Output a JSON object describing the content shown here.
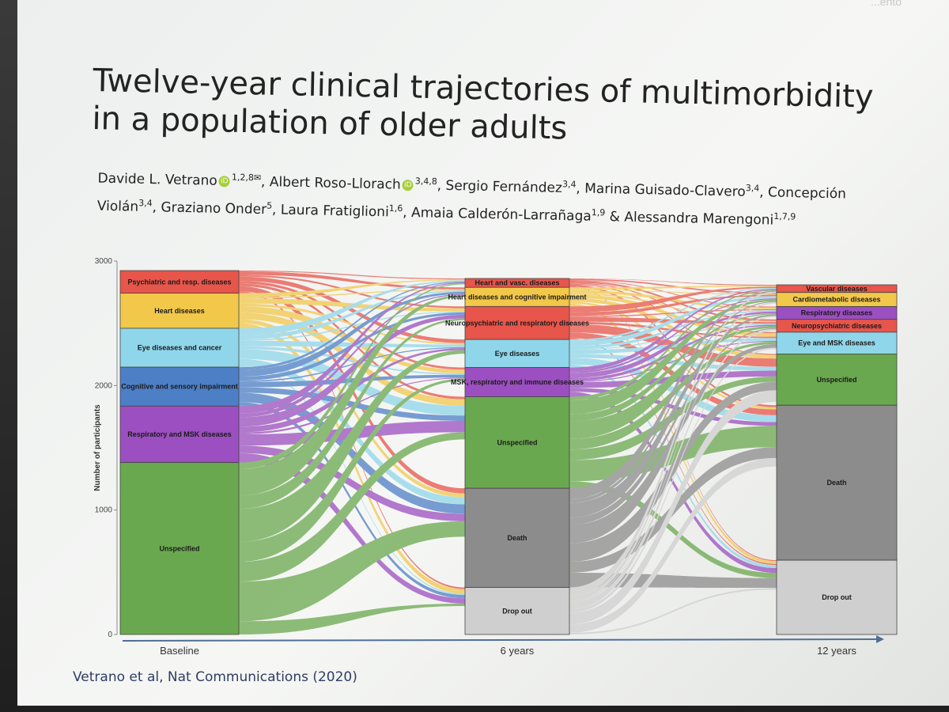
{
  "topbar": {
    "text": "...ento"
  },
  "title": "Twelve-year clinical trajectories of multimorbidity in a population of older adults",
  "authors": [
    {
      "name": "Davide L. Vetrano",
      "orcid": true,
      "sup": "1,2,8✉",
      "sep": ", "
    },
    {
      "name": "Albert Roso-Llorach",
      "orcid": true,
      "sup": "3,4,8",
      "sep": ", "
    },
    {
      "name": "Sergio Fernández",
      "orcid": false,
      "sup": "3,4",
      "sep": ", "
    },
    {
      "name": "Marina Guisado-Clavero",
      "orcid": false,
      "sup": "3,4",
      "sep": ", "
    },
    {
      "name": "Concepción Violán",
      "orcid": false,
      "sup": "3,4",
      "sep": ", "
    },
    {
      "name": "Graziano Onder",
      "orcid": false,
      "sup": "5",
      "sep": ", "
    },
    {
      "name": "Laura Fratiglioni",
      "orcid": false,
      "sup": "1,6",
      "sep": ", "
    },
    {
      "name": "Amaia Calderón-Larrañaga",
      "orcid": false,
      "sup": "1,9",
      "sep": " & "
    },
    {
      "name": "Alessandra Marengoni",
      "orcid": false,
      "sup": "1,7,9",
      "sep": ""
    }
  ],
  "orcid_label": "iD",
  "citation": "Vetrano et al, Nat Communications (2020)",
  "chart_data": {
    "type": "sankey",
    "ylabel": "Number of participants",
    "ylim": [
      0,
      3000
    ],
    "yticks": [
      0,
      1000,
      2000,
      3000
    ],
    "stages": [
      "Baseline",
      "6 years",
      "12 years"
    ],
    "nodes": [
      [
        {
          "label": "Psychiatric and resp. diseases",
          "value": 180,
          "color": "#e8554a"
        },
        {
          "label": "Heart diseases",
          "value": 280,
          "color": "#f2c84b"
        },
        {
          "label": "Eye diseases and cancer",
          "value": 310,
          "color": "#8fd6ea"
        },
        {
          "label": "Cognitive and sensory impairment",
          "value": 310,
          "color": "#4d7fc6"
        },
        {
          "label": "Respiratory and MSK diseases",
          "value": 450,
          "color": "#9b4fc0"
        },
        {
          "label": "Unspecified",
          "value": 1370,
          "color": "#6aa84f"
        }
      ],
      [
        {
          "label": "Heart and vasc. diseases",
          "value": 70,
          "color": "#e8554a"
        },
        {
          "label": "Heart diseases and cognitive impairment",
          "value": 150,
          "color": "#f2c84b"
        },
        {
          "label": "Neuropsychiatric and respiratory diseases",
          "value": 260,
          "color": "#e8554a"
        },
        {
          "label": "Eye diseases",
          "value": 220,
          "color": "#8fd6ea"
        },
        {
          "label": "MSK, respiratory and immune diseases",
          "value": 230,
          "color": "#9b4fc0"
        },
        {
          "label": "Unspecified",
          "value": 720,
          "color": "#6aa84f"
        },
        {
          "label": "Death",
          "value": 780,
          "color": "#8c8c8c"
        },
        {
          "label": "Drop out",
          "value": 370,
          "color": "#cfcfcf"
        }
      ],
      [
        {
          "label": "Vascular diseases",
          "value": 60,
          "color": "#e8554a"
        },
        {
          "label": "Cardiometabolic diseases",
          "value": 110,
          "color": "#f2c84b"
        },
        {
          "label": "Respiratory diseases",
          "value": 100,
          "color": "#9b4fc0"
        },
        {
          "label": "Neuropsychiatric diseases",
          "value": 100,
          "color": "#e8554a"
        },
        {
          "label": "Eye and MSK diseases",
          "value": 170,
          "color": "#8fd6ea"
        },
        {
          "label": "Unspecified",
          "value": 400,
          "color": "#6aa84f"
        },
        {
          "label": "Death",
          "value": 1210,
          "color": "#8c8c8c"
        },
        {
          "label": "Drop out",
          "value": 580,
          "color": "#cfcfcf"
        }
      ]
    ]
  }
}
